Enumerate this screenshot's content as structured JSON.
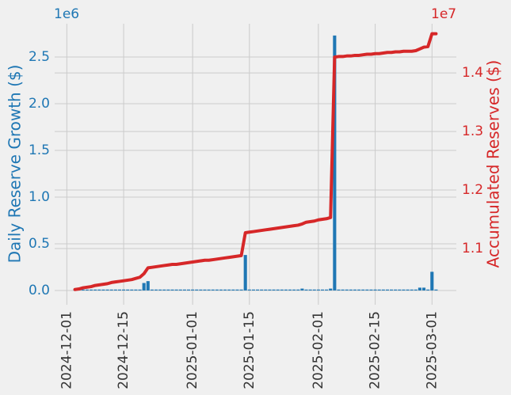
{
  "chart_data": {
    "type": "bar_line",
    "y_offset_label": "1e6",
    "y2_offset_label": "1e7",
    "ylabel": "Daily Reserve Growth ($)",
    "y2label": "Accumulated Reserves ($)",
    "x": [
      "2024-12-03",
      "2024-12-04",
      "2024-12-05",
      "2024-12-06",
      "2024-12-07",
      "2024-12-08",
      "2024-12-09",
      "2024-12-10",
      "2024-12-11",
      "2024-12-12",
      "2024-12-13",
      "2024-12-14",
      "2024-12-15",
      "2024-12-16",
      "2024-12-17",
      "2024-12-18",
      "2024-12-19",
      "2024-12-20",
      "2024-12-21",
      "2024-12-22",
      "2024-12-23",
      "2024-12-24",
      "2024-12-25",
      "2024-12-26",
      "2024-12-27",
      "2024-12-28",
      "2024-12-29",
      "2024-12-30",
      "2024-12-31",
      "2025-01-01",
      "2025-01-02",
      "2025-01-03",
      "2025-01-04",
      "2025-01-05",
      "2025-01-06",
      "2025-01-07",
      "2025-01-08",
      "2025-01-09",
      "2025-01-10",
      "2025-01-11",
      "2025-01-12",
      "2025-01-13",
      "2025-01-14",
      "2025-01-15",
      "2025-01-16",
      "2025-01-17",
      "2025-01-18",
      "2025-01-19",
      "2025-01-20",
      "2025-01-21",
      "2025-01-22",
      "2025-01-23",
      "2025-01-24",
      "2025-01-25",
      "2025-01-26",
      "2025-01-27",
      "2025-01-28",
      "2025-01-29",
      "2025-01-30",
      "2025-01-31",
      "2025-02-01",
      "2025-02-02",
      "2025-02-03",
      "2025-02-04",
      "2025-02-05",
      "2025-02-06",
      "2025-02-07",
      "2025-02-08",
      "2025-02-09",
      "2025-02-10",
      "2025-02-11",
      "2025-02-12",
      "2025-02-13",
      "2025-02-14",
      "2025-02-15",
      "2025-02-16",
      "2025-02-17",
      "2025-02-18",
      "2025-02-19",
      "2025-02-20",
      "2025-02-21",
      "2025-02-22",
      "2025-02-23",
      "2025-02-24",
      "2025-02-25",
      "2025-02-26",
      "2025-02-27",
      "2025-02-28",
      "2025-03-01",
      "2025-03-02"
    ],
    "series": [
      {
        "name": "Daily Reserve Growth",
        "type": "bar",
        "color": "#1f77b4",
        "axis": "y",
        "values": [
          0.01,
          0.01,
          0.01,
          0.01,
          0.01,
          0.01,
          0.01,
          0.01,
          0.01,
          0.01,
          0.01,
          0.01,
          0.01,
          0.01,
          0.01,
          0.01,
          0.01,
          0.08,
          0.1,
          0.01,
          0.01,
          0.01,
          0.01,
          0.01,
          0.01,
          0.01,
          0.01,
          0.01,
          0.01,
          0.01,
          0.01,
          0.01,
          0.01,
          0.01,
          0.01,
          0.01,
          0.01,
          0.01,
          0.01,
          0.01,
          0.01,
          0.01,
          0.38,
          0.01,
          0.01,
          0.01,
          0.01,
          0.01,
          0.01,
          0.01,
          0.01,
          0.01,
          0.01,
          0.01,
          0.01,
          0.01,
          0.02,
          0.01,
          0.01,
          0.01,
          0.01,
          0.01,
          0.01,
          0.02,
          2.73,
          0.01,
          0.01,
          0.01,
          0.01,
          0.01,
          0.01,
          0.01,
          0.01,
          0.01,
          0.01,
          0.01,
          0.01,
          0.01,
          0.01,
          0.01,
          0.01,
          0.01,
          0.01,
          0.01,
          0.01,
          0.03,
          0.03,
          0.01,
          0.2,
          0.01
        ]
      },
      {
        "name": "Accumulated Reserves",
        "type": "line",
        "color": "#d62728",
        "axis": "y2",
        "values": [
          1.03,
          1.031,
          1.033,
          1.034,
          1.035,
          1.037,
          1.038,
          1.039,
          1.04,
          1.042,
          1.043,
          1.044,
          1.045,
          1.046,
          1.047,
          1.049,
          1.051,
          1.057,
          1.067,
          1.068,
          1.069,
          1.07,
          1.071,
          1.072,
          1.073,
          1.073,
          1.074,
          1.075,
          1.076,
          1.077,
          1.078,
          1.079,
          1.08,
          1.08,
          1.081,
          1.082,
          1.083,
          1.084,
          1.085,
          1.086,
          1.087,
          1.088,
          1.127,
          1.128,
          1.129,
          1.13,
          1.131,
          1.132,
          1.133,
          1.134,
          1.135,
          1.136,
          1.137,
          1.138,
          1.139,
          1.14,
          1.142,
          1.145,
          1.146,
          1.147,
          1.149,
          1.15,
          1.151,
          1.153,
          1.427,
          1.428,
          1.428,
          1.429,
          1.429,
          1.43,
          1.43,
          1.431,
          1.432,
          1.432,
          1.433,
          1.433,
          1.434,
          1.435,
          1.435,
          1.436,
          1.436,
          1.437,
          1.437,
          1.437,
          1.438,
          1.441,
          1.444,
          1.445,
          1.467,
          1.467
        ]
      }
    ],
    "xlim": [
      "2024-11-28",
      "2025-03-07"
    ],
    "xticks": [
      "2024-12-01",
      "2024-12-15",
      "2025-01-01",
      "2025-01-15",
      "2025-02-01",
      "2025-02-15",
      "2025-03-01"
    ],
    "ylim": [
      -0.153,
      2.856
    ],
    "yticks": [
      {
        "value": 0,
        "label": "0.0"
      },
      0.5,
      {
        "value": 1,
        "label": "1.0"
      },
      1.5,
      {
        "value": 2,
        "label": "2.0"
      },
      2.5
    ],
    "y2lim": [
      1.004,
      1.484
    ],
    "y2ticks": [
      1.1,
      1.2,
      1.3,
      1.4
    ],
    "grid": true
  }
}
